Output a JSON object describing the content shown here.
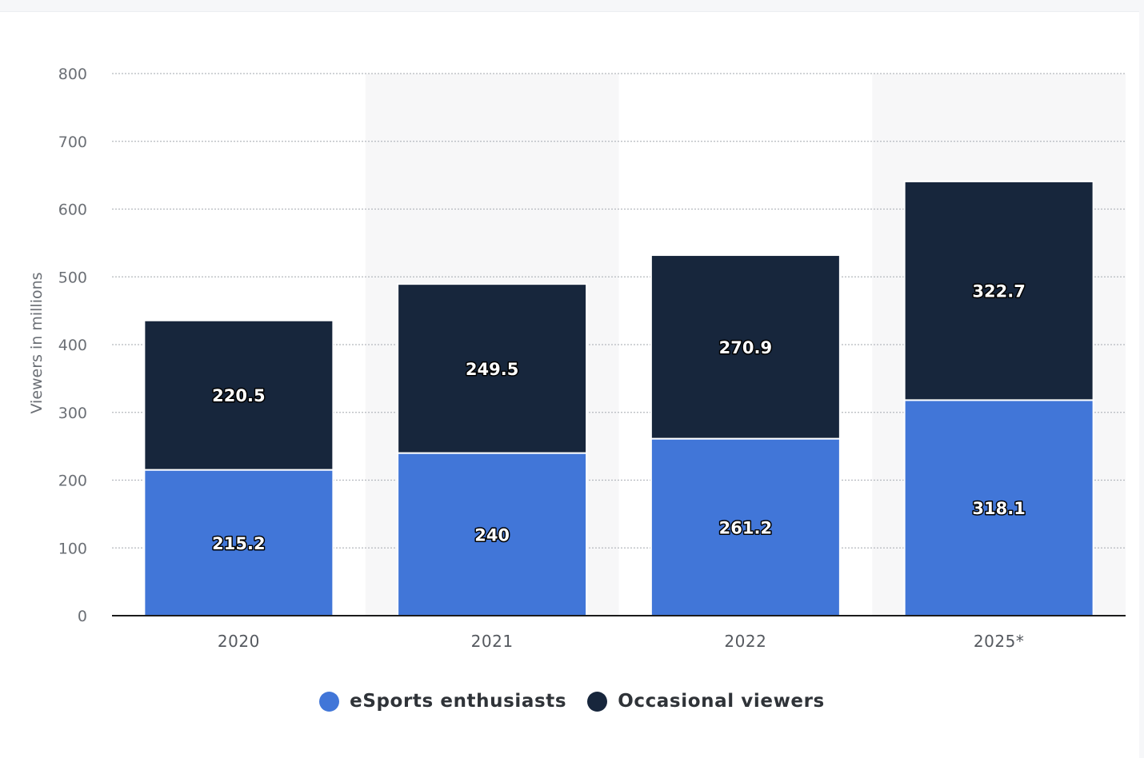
{
  "chart_data": {
    "type": "bar",
    "stacked": true,
    "categories": [
      "2020",
      "2021",
      "2022",
      "2025*"
    ],
    "series": [
      {
        "name": "eSports enthusiasts",
        "values": [
          215.2,
          240,
          261.2,
          318.1
        ],
        "color": "#4176d8",
        "labels": [
          "215.2",
          "240",
          "261.2",
          "318.1"
        ]
      },
      {
        "name": "Occasional viewers",
        "values": [
          220.5,
          249.5,
          270.9,
          322.7
        ],
        "color": "#17263c",
        "labels": [
          "220.5",
          "249.5",
          "270.9",
          "322.7"
        ]
      }
    ],
    "ylabel": "Viewers in millions",
    "ylim": [
      0,
      800
    ],
    "yticks": [
      "0",
      "100",
      "200",
      "300",
      "400",
      "500",
      "600",
      "700",
      "800"
    ],
    "grid": true,
    "legend_position": "bottom"
  },
  "colors": {
    "grid": "#b5b9be",
    "axis": "#1c1c1c",
    "band": "#f7f7f8"
  }
}
